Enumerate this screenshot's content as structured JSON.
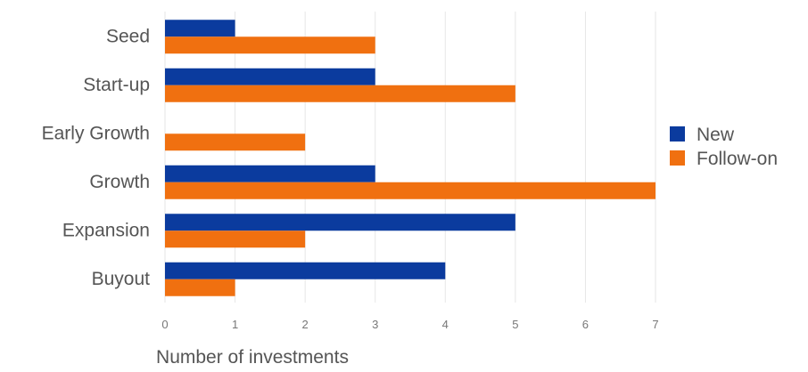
{
  "chart_data": {
    "type": "bar",
    "orientation": "horizontal",
    "categories": [
      "Seed",
      "Start-up",
      "Early Growth",
      "Growth",
      "Expansion",
      "Buyout"
    ],
    "series": [
      {
        "name": "New",
        "color": "#0b3b9e",
        "values": [
          1,
          3,
          0,
          3,
          5,
          4
        ]
      },
      {
        "name": "Follow-on",
        "color": "#f07010",
        "values": [
          3,
          5,
          2,
          7,
          2,
          1
        ]
      }
    ],
    "xlabel": "Number of investments",
    "ylabel": "",
    "title": "",
    "xlim": [
      0,
      7
    ],
    "xticks": [
      "0",
      "1",
      "2",
      "3",
      "4",
      "5",
      "6",
      "7"
    ],
    "grid": "vertical",
    "legend_position": "right"
  }
}
